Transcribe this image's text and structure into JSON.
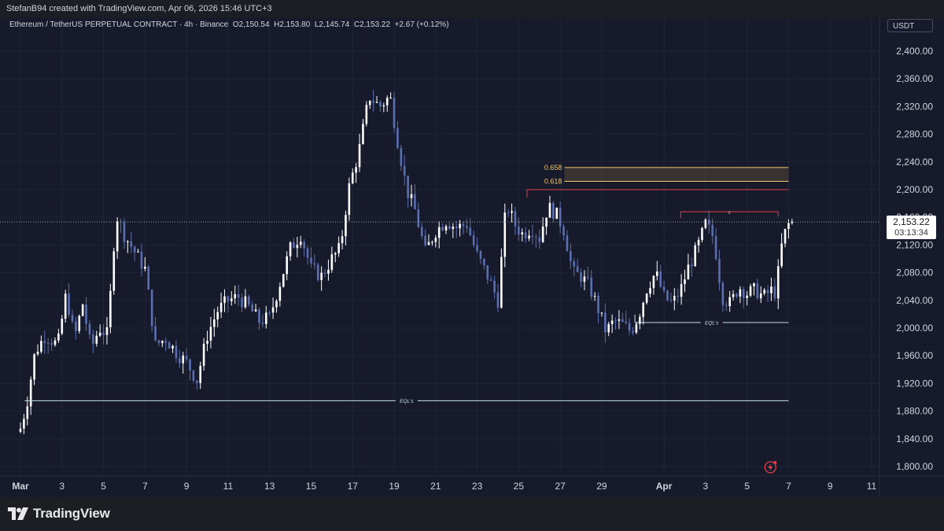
{
  "header": {
    "credit": "StefanB94 created with TradingView.com, Apr 06, 2026 15:46 UTC+3"
  },
  "legend": {
    "symbol": "Ethereum / TetherUS PERPETUAL CONTRACT · 4h · Binance",
    "open": "O2,150.54",
    "high": "H2,153.80",
    "low": "L2,145.74",
    "close": "C2,153.22",
    "change": "+2.67 (+0.12%)"
  },
  "currency": "USDT",
  "last_price": {
    "price": "2,153.22",
    "countdown": "03:13:34"
  },
  "brand": {
    "name": "TradingView"
  },
  "colors": {
    "background": "#161a2b",
    "bull": "#ffffff",
    "bear": "#5b6fb0",
    "fib": "#f0c76b",
    "resistance": "#e0424b",
    "equal_lows": "#c7e3ee"
  },
  "chart_data": {
    "type": "candlestick",
    "ylim": [
      1790,
      2420
    ],
    "y_ticks": [
      1800,
      1840,
      1880,
      1920,
      1960,
      2000,
      2040,
      2080,
      2120,
      2160,
      2200,
      2240,
      2280,
      2320,
      2360,
      2400
    ],
    "y_tick_labels": [
      "1,800.00",
      "1,840.00",
      "1,880.00",
      "1,920.00",
      "1,960.00",
      "2,000.00",
      "2,040.00",
      "2,080.00",
      "2,120.00",
      "2,160.00",
      "2,200.00",
      "2,240.00",
      "2,280.00",
      "2,320.00",
      "2,360.00",
      "2,400.00"
    ],
    "x_ticks": [
      {
        "label": "Mar",
        "day": 1,
        "bold": true
      },
      {
        "label": "3",
        "day": 3
      },
      {
        "label": "5",
        "day": 5
      },
      {
        "label": "7",
        "day": 7
      },
      {
        "label": "9",
        "day": 9
      },
      {
        "label": "11",
        "day": 11
      },
      {
        "label": "13",
        "day": 13
      },
      {
        "label": "15",
        "day": 15
      },
      {
        "label": "17",
        "day": 17
      },
      {
        "label": "19",
        "day": 19
      },
      {
        "label": "21",
        "day": 21
      },
      {
        "label": "23",
        "day": 23
      },
      {
        "label": "25",
        "day": 25
      },
      {
        "label": "27",
        "day": 27
      },
      {
        "label": "29",
        "day": 29
      },
      {
        "label": "Apr",
        "day": 32,
        "bold": true
      },
      {
        "label": "3",
        "day": 34
      },
      {
        "label": "5",
        "day": 36
      },
      {
        "label": "7",
        "day": 38
      },
      {
        "label": "9",
        "day": 40
      },
      {
        "label": "11",
        "day": 42
      }
    ],
    "current_price": 2153.22,
    "fib_levels": [
      {
        "label": "0.658",
        "value": 2232,
        "day_start": 27.2,
        "day_end": 38.0
      },
      {
        "label": "0.618",
        "value": 2212,
        "day_start": 27.2,
        "day_end": 38.0
      }
    ],
    "levels": [
      {
        "name": "resistance",
        "value": 2200,
        "day_start": 25.4,
        "day_end": 38.0,
        "label": ""
      },
      {
        "name": "swing-high",
        "value": 2168,
        "day_start": 32.8,
        "day_end": 37.5,
        "label": "x"
      },
      {
        "name": "equal-lows-upper",
        "value": 2008,
        "day_start": 30.6,
        "day_end": 38.0,
        "label": "EQL's"
      },
      {
        "name": "equal-lows-lower",
        "value": 1895,
        "day_start": 1.2,
        "day_end": 38.0,
        "label": "EQL's"
      }
    ],
    "keypoints": [
      [
        0.0,
        1855
      ],
      [
        0.3,
        1890
      ],
      [
        0.7,
        1965
      ],
      [
        1.2,
        1990
      ],
      [
        1.8,
        1975
      ],
      [
        2.2,
        2050
      ],
      [
        2.6,
        1985
      ],
      [
        3.0,
        2035
      ],
      [
        3.4,
        1970
      ],
      [
        3.8,
        2000
      ],
      [
        4.2,
        1990
      ],
      [
        4.6,
        2165
      ],
      [
        5.0,
        2135
      ],
      [
        5.5,
        2110
      ],
      [
        6.0,
        2085
      ],
      [
        6.5,
        1975
      ],
      [
        7.0,
        1985
      ],
      [
        7.5,
        1965
      ],
      [
        8.0,
        1950
      ],
      [
        8.5,
        1925
      ],
      [
        9.0,
        1990
      ],
      [
        9.5,
        2025
      ],
      [
        10.0,
        2040
      ],
      [
        10.5,
        2045
      ],
      [
        11.0,
        2030
      ],
      [
        11.5,
        2010
      ],
      [
        12.0,
        2015
      ],
      [
        12.5,
        2065
      ],
      [
        13.0,
        2115
      ],
      [
        13.5,
        2135
      ],
      [
        14.0,
        2085
      ],
      [
        14.5,
        2075
      ],
      [
        15.0,
        2100
      ],
      [
        15.4,
        2115
      ],
      [
        15.8,
        2200
      ],
      [
        16.3,
        2255
      ],
      [
        16.8,
        2335
      ],
      [
        17.3,
        2320
      ],
      [
        17.8,
        2335
      ],
      [
        18.2,
        2265
      ],
      [
        18.6,
        2200
      ],
      [
        19.0,
        2170
      ],
      [
        19.5,
        2110
      ],
      [
        20.0,
        2140
      ],
      [
        20.5,
        2155
      ],
      [
        21.0,
        2145
      ],
      [
        21.5,
        2150
      ],
      [
        22.0,
        2105
      ],
      [
        22.5,
        2075
      ],
      [
        23.0,
        2040
      ],
      [
        23.4,
        2180
      ],
      [
        23.8,
        2150
      ],
      [
        24.2,
        2135
      ],
      [
        24.6,
        2145
      ],
      [
        25.0,
        2130
      ],
      [
        25.4,
        2175
      ],
      [
        25.8,
        2165
      ],
      [
        26.2,
        2140
      ],
      [
        26.6,
        2080
      ],
      [
        27.0,
        2075
      ],
      [
        27.4,
        2060
      ],
      [
        27.8,
        2030
      ],
      [
        28.2,
        1995
      ],
      [
        28.6,
        2010
      ],
      [
        29.0,
        2005
      ],
      [
        29.4,
        1995
      ],
      [
        29.8,
        2020
      ],
      [
        30.2,
        2060
      ],
      [
        30.6,
        2080
      ],
      [
        31.0,
        2045
      ],
      [
        31.4,
        2035
      ],
      [
        31.8,
        2055
      ],
      [
        32.2,
        2090
      ],
      [
        32.6,
        2115
      ],
      [
        33.0,
        2150
      ],
      [
        33.4,
        2130
      ],
      [
        33.8,
        2045
      ],
      [
        34.2,
        2035
      ],
      [
        34.6,
        2060
      ],
      [
        35.0,
        2050
      ],
      [
        35.4,
        2055
      ],
      [
        35.8,
        2045
      ],
      [
        36.2,
        2055
      ],
      [
        36.4,
        2050
      ],
      [
        36.6,
        2110
      ],
      [
        36.8,
        2135
      ],
      [
        37.0,
        2150
      ],
      [
        37.1,
        2153
      ]
    ]
  },
  "annotations": {
    "eql_label": "EQL's",
    "x_label": "x"
  }
}
